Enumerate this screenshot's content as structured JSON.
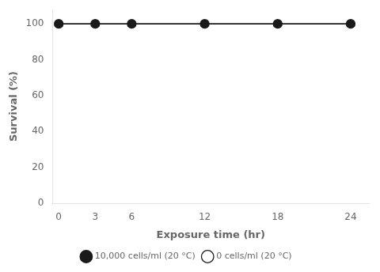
{
  "chart_data": {
    "type": "line",
    "x": [
      0,
      3,
      6,
      12,
      18,
      24
    ],
    "series": [
      {
        "name": "0 cells/ml (20 °C)",
        "color": "#1a1a1a",
        "marker": "open_circle",
        "values": [
          100,
          100,
          100,
          100,
          100,
          100
        ]
      },
      {
        "name": "10,000 cells/ml (20 °C)",
        "color": "#1a1a1a",
        "marker": "circle",
        "values": [
          100,
          100,
          100,
          100,
          100,
          100
        ]
      }
    ],
    "x_label": "Exposure time (hr)",
    "y_label": "Survival (%)",
    "xlim": [
      -0.5,
      25.5
    ],
    "ylim": [
      0,
      108
    ],
    "xticks": [
      0,
      3,
      6,
      12,
      18,
      24
    ],
    "yticks": [
      0,
      20,
      40,
      60,
      80,
      100
    ],
    "grid": false,
    "legend": "bottom"
  }
}
